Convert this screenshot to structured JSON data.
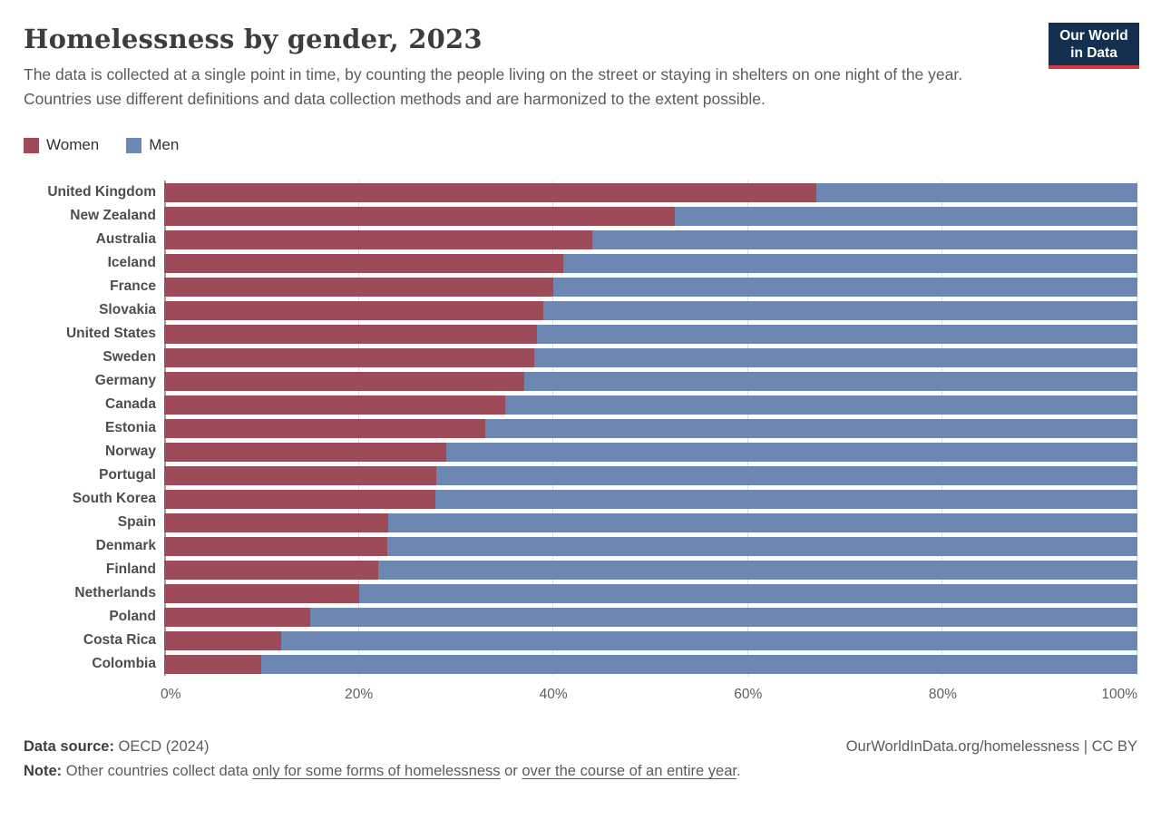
{
  "header": {
    "title": "Homelessness by gender, 2023",
    "subtitle": "The data is collected at a single point in time, by counting the people living on the street or staying in shelters on one night of the year. Countries use different definitions and data collection methods and are harmonized to the extent possible.",
    "logo_line1": "Our World",
    "logo_line2": "in Data"
  },
  "colors": {
    "women": "#9d4a59",
    "men": "#6d87b3",
    "logo_bg": "#13304e",
    "logo_stripe": "#cf3b44",
    "gridline": "#dcdcdc",
    "axis_line": "#9a9a9a"
  },
  "legend": {
    "items": [
      {
        "label": "Women",
        "color": "#9d4a59"
      },
      {
        "label": "Men",
        "color": "#6d87b3"
      }
    ]
  },
  "chart_data": {
    "type": "bar",
    "variant": "stacked-horizontal-100pct",
    "title": "Homelessness by gender, 2023",
    "categories": [
      "United Kingdom",
      "New Zealand",
      "Australia",
      "Iceland",
      "France",
      "Slovakia",
      "United States",
      "Sweden",
      "Germany",
      "Canada",
      "Estonia",
      "Norway",
      "Portugal",
      "South Korea",
      "Spain",
      "Denmark",
      "Finland",
      "Netherlands",
      "Poland",
      "Costa Rica",
      "Colombia"
    ],
    "series": [
      {
        "name": "Women",
        "color": "#9d4a59",
        "values": [
          67,
          52.5,
          44,
          41,
          40,
          39,
          38.3,
          38,
          37,
          35,
          33,
          29,
          28,
          27.9,
          23,
          22.9,
          22,
          20,
          15,
          12,
          10
        ]
      },
      {
        "name": "Men",
        "color": "#6d87b3",
        "values": [
          33,
          47.5,
          56,
          59,
          60,
          61,
          61.7,
          62,
          63,
          65,
          67,
          71,
          72,
          72.1,
          77,
          77.1,
          78,
          80,
          85,
          88,
          90
        ]
      }
    ],
    "x_ticks": [
      "0%",
      "20%",
      "40%",
      "60%",
      "80%",
      "100%"
    ],
    "xlim": [
      0,
      100
    ],
    "unit": "%",
    "legend_position": "top-left",
    "grid": "vertical"
  },
  "footer": {
    "source_label": "Data source:",
    "source_value": "OECD (2024)",
    "attribution": "OurWorldInData.org/homelessness | CC BY",
    "note_label": "Note:",
    "note_pre": "Other countries collect data",
    "note_link1": "only for some forms of homelessness",
    "note_mid": "or",
    "note_link2": "over the course of an entire year",
    "note_end": "."
  }
}
